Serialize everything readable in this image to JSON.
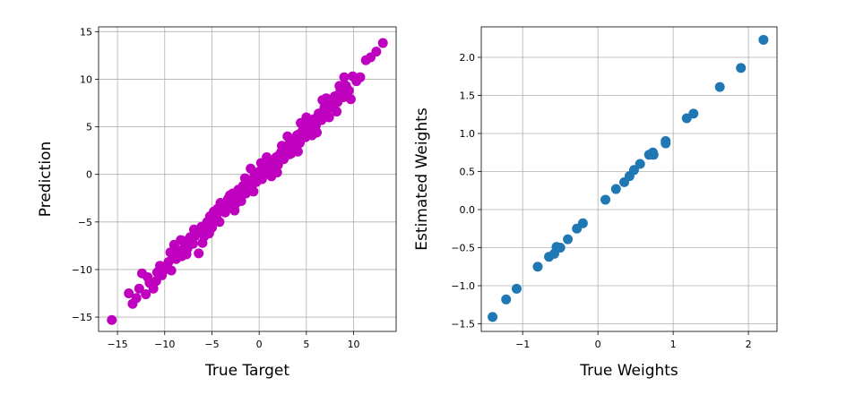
{
  "chart_data": [
    {
      "type": "scatter",
      "xlabel": "True Target",
      "ylabel": "Prediction",
      "xlim": [
        -17,
        14.5
      ],
      "ylim": [
        -16.5,
        15.5
      ],
      "xticks": [
        -15,
        -10,
        -5,
        0,
        5,
        10
      ],
      "yticks": [
        -15,
        -10,
        -5,
        0,
        5,
        10,
        15
      ],
      "xtick_labels": [
        "−15",
        "−10",
        "−5",
        "0",
        "5",
        "10"
      ],
      "ytick_labels": [
        "−15",
        "−10",
        "−5",
        "0",
        "5",
        "10",
        "15"
      ],
      "grid": true,
      "color": "#bf00bf",
      "series": [
        {
          "points": [
            [
              -15.6,
              -15.3
            ],
            [
              -13.8,
              -12.5
            ],
            [
              -13.4,
              -13.6
            ],
            [
              -13.0,
              -13.0
            ],
            [
              -12.7,
              -12.0
            ],
            [
              -12.4,
              -10.4
            ],
            [
              -12.0,
              -12.6
            ],
            [
              -11.6,
              -11.4
            ],
            [
              -11.2,
              -12.0
            ],
            [
              -10.8,
              -10.3
            ],
            [
              -10.5,
              -9.6
            ],
            [
              -10.0,
              -10.0
            ],
            [
              -9.6,
              -9.2
            ],
            [
              -9.3,
              -10.1
            ],
            [
              -9.0,
              -7.4
            ],
            [
              -8.8,
              -8.9
            ],
            [
              -8.5,
              -8.0
            ],
            [
              -8.2,
              -8.6
            ],
            [
              -8.0,
              -7.0
            ],
            [
              -7.6,
              -7.8
            ],
            [
              -7.3,
              -6.6
            ],
            [
              -7.0,
              -7.3
            ],
            [
              -6.6,
              -6.0
            ],
            [
              -6.4,
              -8.3
            ],
            [
              -6.1,
              -5.5
            ],
            [
              -5.8,
              -6.5
            ],
            [
              -5.5,
              -5.0
            ],
            [
              -5.2,
              -4.4
            ],
            [
              -5.0,
              -5.6
            ],
            [
              -4.7,
              -4.4
            ],
            [
              -4.4,
              -3.6
            ],
            [
              -4.2,
              -5.0
            ],
            [
              -3.9,
              -3.4
            ],
            [
              -3.6,
              -4.0
            ],
            [
              -3.3,
              -2.6
            ],
            [
              -3.0,
              -3.3
            ],
            [
              -2.8,
              -2.0
            ],
            [
              -2.5,
              -3.1
            ],
            [
              -2.2,
              -1.6
            ],
            [
              -2.0,
              -2.4
            ],
            [
              -1.7,
              -1.2
            ],
            [
              -1.4,
              -2.0
            ],
            [
              -1.1,
              -0.7
            ],
            [
              -0.8,
              -1.3
            ],
            [
              -0.5,
              -0.1
            ],
            [
              -0.3,
              -0.8
            ],
            [
              0.0,
              0.3
            ],
            [
              0.3,
              -0.5
            ],
            [
              0.6,
              0.7
            ],
            [
              0.9,
              0.1
            ],
            [
              1.2,
              1.2
            ],
            [
              1.5,
              0.6
            ],
            [
              1.8,
              1.8
            ],
            [
              2.0,
              1.0
            ],
            [
              2.3,
              2.3
            ],
            [
              2.6,
              1.6
            ],
            [
              2.9,
              2.9
            ],
            [
              3.2,
              2.1
            ],
            [
              3.5,
              3.4
            ],
            [
              3.8,
              2.7
            ],
            [
              4.0,
              4.1
            ],
            [
              4.3,
              3.3
            ],
            [
              4.6,
              4.6
            ],
            [
              4.9,
              3.9
            ],
            [
              5.2,
              5.2
            ],
            [
              5.5,
              4.6
            ],
            [
              5.8,
              5.8
            ],
            [
              6.0,
              5.1
            ],
            [
              6.3,
              6.4
            ],
            [
              6.6,
              5.7
            ],
            [
              6.9,
              7.0
            ],
            [
              7.2,
              6.2
            ],
            [
              7.5,
              7.6
            ],
            [
              7.8,
              7.0
            ],
            [
              8.0,
              8.2
            ],
            [
              8.3,
              7.6
            ],
            [
              8.6,
              8.8
            ],
            [
              8.9,
              8.1
            ],
            [
              9.2,
              9.3
            ],
            [
              9.5,
              8.8
            ],
            [
              9.9,
              10.3
            ],
            [
              10.3,
              9.8
            ],
            [
              10.7,
              10.2
            ],
            [
              11.3,
              12.0
            ],
            [
              11.8,
              12.3
            ],
            [
              12.4,
              12.9
            ],
            [
              13.1,
              13.8
            ],
            [
              -10.3,
              -10.6
            ],
            [
              -9.8,
              -9.6
            ],
            [
              -9.1,
              -8.8
            ],
            [
              -8.6,
              -8.4
            ],
            [
              -7.9,
              -7.6
            ],
            [
              -7.4,
              -7.1
            ],
            [
              -6.8,
              -6.5
            ],
            [
              -6.2,
              -6.0
            ],
            [
              -5.6,
              -5.4
            ],
            [
              -5.1,
              -5.0
            ],
            [
              -4.5,
              -4.3
            ],
            [
              -3.9,
              -3.8
            ],
            [
              -3.4,
              -3.2
            ],
            [
              -2.8,
              -2.7
            ],
            [
              -2.3,
              -2.2
            ],
            [
              -1.8,
              -1.7
            ],
            [
              -1.2,
              -1.1
            ],
            [
              -0.7,
              -0.6
            ],
            [
              -0.1,
              0.0
            ],
            [
              0.4,
              0.5
            ],
            [
              1.0,
              1.0
            ],
            [
              1.5,
              1.5
            ],
            [
              2.1,
              2.0
            ],
            [
              2.6,
              2.6
            ],
            [
              3.1,
              3.1
            ],
            [
              3.7,
              3.6
            ],
            [
              4.2,
              4.2
            ],
            [
              4.8,
              4.7
            ],
            [
              5.3,
              5.3
            ],
            [
              5.9,
              5.8
            ],
            [
              6.4,
              6.4
            ],
            [
              7.0,
              6.9
            ],
            [
              7.5,
              7.5
            ],
            [
              8.1,
              8.0
            ],
            [
              8.7,
              8.6
            ],
            [
              -11.8,
              -10.8
            ],
            [
              -10.9,
              -11.2
            ],
            [
              -9.4,
              -8.2
            ],
            [
              -7.7,
              -8.4
            ],
            [
              -6.9,
              -5.8
            ],
            [
              -5.3,
              -6.2
            ],
            [
              -4.1,
              -3.0
            ],
            [
              -2.6,
              -3.8
            ],
            [
              -1.5,
              -0.4
            ],
            [
              -0.6,
              -1.8
            ],
            [
              0.8,
              1.8
            ],
            [
              1.9,
              0.2
            ],
            [
              3.0,
              4.0
            ],
            [
              4.1,
              2.4
            ],
            [
              5.0,
              6.0
            ],
            [
              6.1,
              4.4
            ],
            [
              7.1,
              8.0
            ],
            [
              8.2,
              6.6
            ],
            [
              9.0,
              10.2
            ],
            [
              9.7,
              7.9
            ],
            [
              2.4,
              3.0
            ],
            [
              -3.1,
              -2.2
            ],
            [
              0.2,
              1.2
            ],
            [
              -1.9,
              -2.8
            ],
            [
              3.4,
              2.2
            ],
            [
              4.4,
              5.4
            ],
            [
              5.6,
              4.1
            ],
            [
              -6.0,
              -7.2
            ],
            [
              -8.3,
              -6.9
            ],
            [
              -4.8,
              -3.9
            ],
            [
              6.7,
              7.8
            ],
            [
              7.4,
              6.0
            ],
            [
              8.5,
              9.3
            ],
            [
              -0.9,
              0.6
            ],
            [
              1.3,
              -0.2
            ]
          ]
        }
      ]
    },
    {
      "type": "scatter",
      "xlabel": "True Weights",
      "ylabel": "Estimated Weights",
      "xlim": [
        -1.55,
        2.38
      ],
      "ylim": [
        -1.6,
        2.4
      ],
      "xticks": [
        -1,
        0,
        1,
        2
      ],
      "yticks": [
        -1.5,
        -1.0,
        -0.5,
        0.0,
        0.5,
        1.0,
        1.5,
        2.0
      ],
      "xtick_labels": [
        "−1",
        "0",
        "1",
        "2"
      ],
      "ytick_labels": [
        "−1.5",
        "−1.0",
        "−0.5",
        "0.0",
        "0.5",
        "1.0",
        "1.5",
        "2.0"
      ],
      "grid": true,
      "color": "#1f77b4",
      "series": [
        {
          "points": [
            [
              -1.4,
              -1.41
            ],
            [
              -1.22,
              -1.18
            ],
            [
              -1.08,
              -1.04
            ],
            [
              -0.8,
              -0.75
            ],
            [
              -0.65,
              -0.62
            ],
            [
              -0.58,
              -0.58
            ],
            [
              -0.55,
              -0.49
            ],
            [
              -0.5,
              -0.5
            ],
            [
              -0.4,
              -0.39
            ],
            [
              -0.28,
              -0.25
            ],
            [
              -0.2,
              -0.18
            ],
            [
              0.1,
              0.13
            ],
            [
              0.24,
              0.27
            ],
            [
              0.35,
              0.36
            ],
            [
              0.42,
              0.44
            ],
            [
              0.48,
              0.52
            ],
            [
              0.56,
              0.6
            ],
            [
              0.68,
              0.72
            ],
            [
              0.73,
              0.75
            ],
            [
              0.74,
              0.72
            ],
            [
              0.9,
              0.87
            ],
            [
              0.9,
              0.9
            ],
            [
              1.18,
              1.2
            ],
            [
              1.27,
              1.26
            ],
            [
              1.62,
              1.61
            ],
            [
              1.9,
              1.86
            ],
            [
              2.2,
              2.23
            ]
          ]
        }
      ]
    }
  ]
}
